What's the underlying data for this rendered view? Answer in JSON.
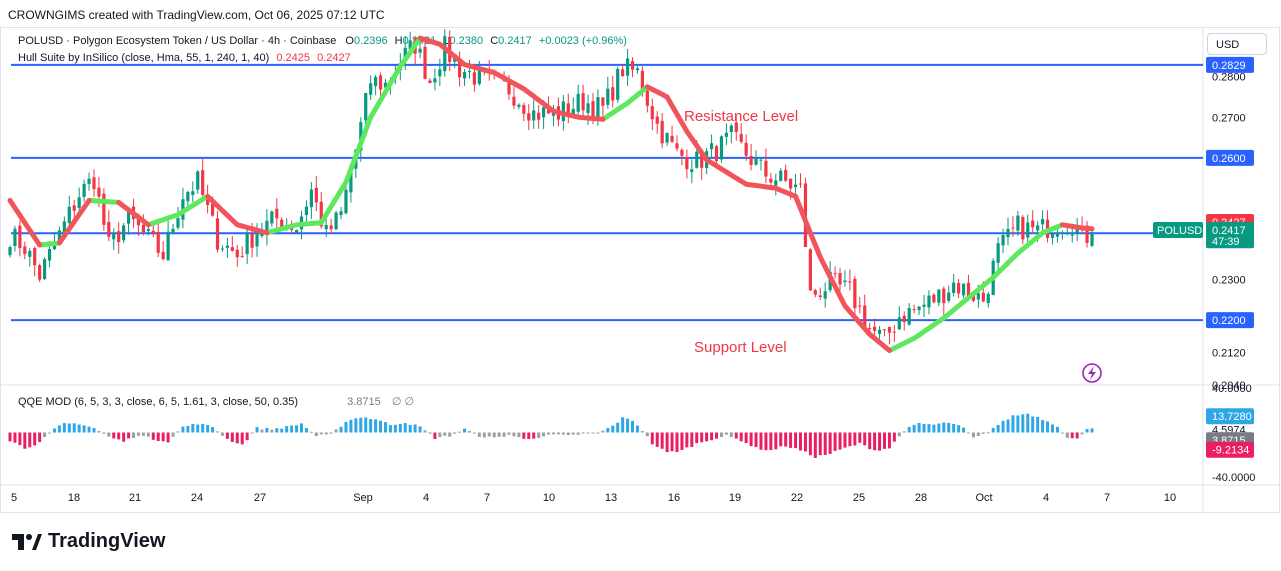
{
  "credit": "CROWNGIMS created with TradingView.com, Oct 06, 2025 07:12 UTC",
  "symbol_line": {
    "title": "POLUSD · Polygon Ecosystem Token / US Dollar · 4h · Coinbase",
    "o_label": "O",
    "o": "0.2396",
    "h_label": "H",
    "h": "0.2421",
    "l_label": "L",
    "l": "0.2380",
    "c_label": "C",
    "c": "0.2417",
    "change": "+0.0023 (+0.96%)"
  },
  "hull_line": {
    "label": "Hull Suite by InSilico (close, Hma, 55, 1, 240, 1, 40)",
    "v1": "0.2425",
    "v2": "0.2427"
  },
  "qqe_line": {
    "label": "QQE MOD (6, 5, 3, 3, close, 6, 5, 1.61, 3, close, 50, 0.35)",
    "value": "3.8715",
    "extra": "∅ ∅"
  },
  "currency_button": "USD",
  "brand": "TradingView",
  "annotations": {
    "resistance": "Resistance Level",
    "support": "Support Level"
  },
  "colors": {
    "bull": "#089981",
    "bear": "#f23645",
    "level_line": "#2962ff",
    "hull_up": "#5ee85e",
    "hull_down": "#f2545b",
    "qqe_blue": "#2fa7e6",
    "qqe_pink": "#e91e63",
    "qqe_gray": "#9e9e9e"
  },
  "chart_data": [
    {
      "type": "candlestick",
      "title": "POLUSD · Polygon Ecosystem Token / US Dollar · 4h · Coinbase",
      "ylim": [
        0.204,
        0.292
      ],
      "x_ticks": [
        "5",
        "18",
        "21",
        "24",
        "27",
        "Sep",
        "4",
        "7",
        "10",
        "13",
        "16",
        "19",
        "22",
        "25",
        "28",
        "Oct",
        "4",
        "7",
        "10"
      ],
      "y_ticks": [
        "0.2800",
        "0.2700",
        "0.2300",
        "0.2120",
        "0.2040"
      ],
      "horizontal_levels": [
        0.2829,
        0.26,
        0.2414,
        0.22
      ],
      "last_price_label": "POLUSD",
      "last_price": "0.2417",
      "countdown": "47:39",
      "price_labels": [
        {
          "value": "0.2829",
          "color": "#2962ff"
        },
        {
          "value": "0.2600",
          "color": "#2962ff"
        },
        {
          "value": "0.2427",
          "color": "#f23645"
        },
        {
          "value": "0.2425",
          "color": "#f23645"
        },
        {
          "value": "0.2414",
          "color": "#2962ff"
        },
        {
          "value": "0.2200",
          "color": "#2962ff"
        }
      ],
      "anchors": [
        [
          0,
          0.241
        ],
        [
          3,
          0.238
        ],
        [
          6,
          0.231
        ],
        [
          10,
          0.241
        ],
        [
          14,
          0.251
        ],
        [
          17,
          0.255
        ],
        [
          20,
          0.238
        ],
        [
          24,
          0.245
        ],
        [
          28,
          0.24
        ],
        [
          31,
          0.236
        ],
        [
          35,
          0.251
        ],
        [
          38,
          0.254
        ],
        [
          42,
          0.24
        ],
        [
          46,
          0.236
        ],
        [
          50,
          0.242
        ],
        [
          54,
          0.245
        ],
        [
          58,
          0.243
        ],
        [
          61,
          0.252
        ],
        [
          64,
          0.241
        ],
        [
          67,
          0.246
        ],
        [
          70,
          0.262
        ],
        [
          73,
          0.279
        ],
        [
          76,
          0.278
        ],
        [
          79,
          0.284
        ],
        [
          82,
          0.288
        ],
        [
          85,
          0.279
        ],
        [
          88,
          0.287
        ],
        [
          91,
          0.282
        ],
        [
          96,
          0.279
        ],
        [
          101,
          0.277
        ],
        [
          106,
          0.271
        ],
        [
          111,
          0.271
        ],
        [
          116,
          0.274
        ],
        [
          120,
          0.272
        ],
        [
          124,
          0.282
        ],
        [
          127,
          0.281
        ],
        [
          131,
          0.268
        ],
        [
          135,
          0.261
        ],
        [
          139,
          0.259
        ],
        [
          143,
          0.262
        ],
        [
          146,
          0.265
        ],
        [
          149,
          0.261
        ],
        [
          153,
          0.256
        ],
        [
          157,
          0.254
        ],
        [
          160,
          0.252
        ],
        [
          162,
          0.226
        ],
        [
          166,
          0.229
        ],
        [
          170,
          0.227
        ],
        [
          174,
          0.218
        ],
        [
          177,
          0.215
        ],
        [
          180,
          0.221
        ],
        [
          184,
          0.223
        ],
        [
          188,
          0.226
        ],
        [
          191,
          0.229
        ],
        [
          194,
          0.227
        ],
        [
          197,
          0.225
        ],
        [
          200,
          0.237
        ],
        [
          204,
          0.243
        ],
        [
          208,
          0.242
        ],
        [
          212,
          0.244
        ],
        [
          215,
          0.244
        ],
        [
          217,
          0.24
        ],
        [
          219,
          0.2417
        ]
      ],
      "hull_suite": {
        "values_at_last": [
          0.2425,
          0.2427
        ],
        "path": [
          [
            0,
            0.2495
          ],
          [
            6,
            0.2385
          ],
          [
            10,
            0.239
          ],
          [
            16,
            0.2495
          ],
          [
            22,
            0.249
          ],
          [
            28,
            0.2435
          ],
          [
            34,
            0.246
          ],
          [
            40,
            0.2505
          ],
          [
            46,
            0.2435
          ],
          [
            52,
            0.2415
          ],
          [
            58,
            0.2435
          ],
          [
            63,
            0.244
          ],
          [
            68,
            0.254
          ],
          [
            73,
            0.27
          ],
          [
            79,
            0.2825
          ],
          [
            83,
            0.2895
          ],
          [
            87,
            0.288
          ],
          [
            92,
            0.283
          ],
          [
            98,
            0.281
          ],
          [
            104,
            0.277
          ],
          [
            110,
            0.2715
          ],
          [
            115,
            0.27
          ],
          [
            120,
            0.2695
          ],
          [
            125,
            0.2735
          ],
          [
            129,
            0.2775
          ],
          [
            133,
            0.275
          ],
          [
            137,
            0.2665
          ],
          [
            141,
            0.2595
          ],
          [
            145,
            0.2565
          ],
          [
            149,
            0.2535
          ],
          [
            155,
            0.2525
          ],
          [
            159,
            0.2505
          ],
          [
            164,
            0.2355
          ],
          [
            169,
            0.2235
          ],
          [
            174,
            0.2165
          ],
          [
            178,
            0.2125
          ],
          [
            183,
            0.2155
          ],
          [
            189,
            0.2205
          ],
          [
            194,
            0.2255
          ],
          [
            199,
            0.2305
          ],
          [
            204,
            0.2365
          ],
          [
            209,
            0.2415
          ],
          [
            213,
            0.2435
          ],
          [
            217,
            0.2427
          ],
          [
            219,
            0.2425
          ]
        ],
        "up_segments": [
          [
            6,
            10
          ],
          [
            16,
            22
          ],
          [
            28,
            40
          ],
          [
            52,
            63
          ],
          [
            63,
            83
          ],
          [
            120,
            129
          ],
          [
            178,
            213
          ]
        ],
        "down_segments": [
          [
            0,
            6
          ],
          [
            10,
            16
          ],
          [
            22,
            28
          ],
          [
            40,
            52
          ],
          [
            83,
            120
          ],
          [
            129,
            178
          ],
          [
            213,
            219
          ]
        ]
      }
    },
    {
      "type": "bar",
      "title": "QQE MOD (6, 5, 3, 3, close, 6, 5, 1.61, 3, close, 50, 0.35)",
      "ylim": [
        -40,
        40
      ],
      "y_ticks": [
        "40.0000",
        "-40.0000"
      ],
      "price_labels": [
        {
          "value": "13.7280",
          "color": "#2fa7e6"
        },
        {
          "value": "4.5974",
          "color": "none"
        },
        {
          "value": "3.8715",
          "color": "#787b86"
        },
        {
          "value": "-9.2134",
          "color": "#e91e63"
        }
      ],
      "series": [
        {
          "name": "QQE MOD",
          "anchors": [
            [
              0,
              -7
            ],
            [
              3,
              -14
            ],
            [
              6,
              -9
            ],
            [
              9,
              3
            ],
            [
              11,
              8
            ],
            [
              14,
              8
            ],
            [
              17,
              4
            ],
            [
              20,
              -4
            ],
            [
              23,
              -8
            ],
            [
              26,
              -2
            ],
            [
              29,
              -6
            ],
            [
              32,
              -8
            ],
            [
              35,
              5
            ],
            [
              38,
              8
            ],
            [
              41,
              5
            ],
            [
              44,
              -6
            ],
            [
              47,
              -11
            ],
            [
              50,
              4
            ],
            [
              53,
              3
            ],
            [
              56,
              5
            ],
            [
              59,
              8
            ],
            [
              62,
              -3
            ],
            [
              65,
              -2
            ],
            [
              68,
              10
            ],
            [
              71,
              14
            ],
            [
              74,
              12
            ],
            [
              77,
              7
            ],
            [
              80,
              9
            ],
            [
              83,
              5
            ],
            [
              86,
              -5
            ],
            [
              89,
              -3
            ],
            [
              92,
              3
            ],
            [
              95,
              -3
            ],
            [
              98,
              -5
            ],
            [
              101,
              -2
            ],
            [
              104,
              -6
            ],
            [
              107,
              -4
            ],
            [
              110,
              -2
            ],
            [
              113,
              -3
            ],
            [
              116,
              -1
            ],
            [
              119,
              -1
            ],
            [
              122,
              6
            ],
            [
              124,
              13
            ],
            [
              126,
              11
            ],
            [
              128,
              2
            ],
            [
              130,
              -10
            ],
            [
              133,
              -18
            ],
            [
              136,
              -16
            ],
            [
              139,
              -10
            ],
            [
              142,
              -6
            ],
            [
              145,
              -3
            ],
            [
              148,
              -7
            ],
            [
              151,
              -14
            ],
            [
              154,
              -16
            ],
            [
              157,
              -12
            ],
            [
              160,
              -16
            ],
            [
              163,
              -22
            ],
            [
              166,
              -19
            ],
            [
              169,
              -14
            ],
            [
              172,
              -10
            ],
            [
              175,
              -16
            ],
            [
              178,
              -14
            ],
            [
              181,
              2
            ],
            [
              184,
              8
            ],
            [
              187,
              7
            ],
            [
              190,
              9
            ],
            [
              193,
              4
            ],
            [
              195,
              -5
            ],
            [
              197,
              -2
            ],
            [
              200,
              7
            ],
            [
              203,
              15
            ],
            [
              206,
              17
            ],
            [
              209,
              12
            ],
            [
              212,
              6
            ],
            [
              214,
              -5
            ],
            [
              216,
              -6
            ],
            [
              218,
              4
            ],
            [
              219,
              3.8715
            ]
          ]
        }
      ]
    }
  ]
}
